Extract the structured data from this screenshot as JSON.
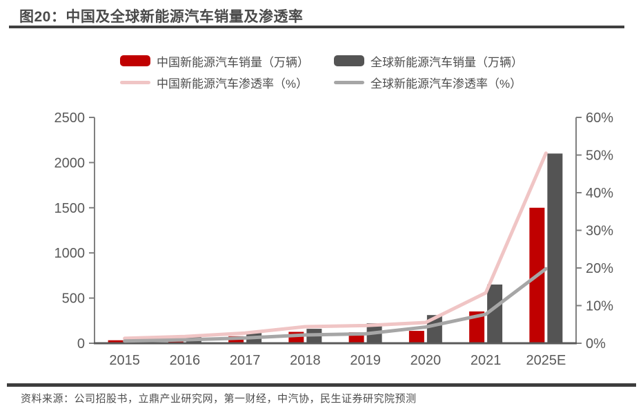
{
  "header": {
    "title": "图20：中国及全球新能源汽车销量及渗透率"
  },
  "footer": {
    "source": "资料来源：公司招股书，立鼎产业研究网，第一财经，中汽协，民生证券研究院预测"
  },
  "colors": {
    "china_bar": "#c00000",
    "global_bar": "#545454",
    "china_line": "#f0c5c5",
    "global_line": "#a6a6a6",
    "axis_line": "#7f7f7f",
    "baseline": "#595959",
    "tick_text": "#595959"
  },
  "chart_data": {
    "type": "bar",
    "subtype": "bar-line combo, dual axis",
    "categories": [
      "2015",
      "2016",
      "2017",
      "2018",
      "2019",
      "2020",
      "2021",
      "2025E"
    ],
    "series": [
      {
        "name": "中国新能源汽车销量（万辆）",
        "kind": "bar",
        "axis": "left",
        "color_key": "china_bar",
        "values": [
          33,
          51,
          78,
          126,
          121,
          137,
          352,
          1500
        ]
      },
      {
        "name": "全球新能源汽车销量（万辆）",
        "kind": "bar",
        "axis": "left",
        "color_key": "global_bar",
        "values": [
          55,
          75,
          122,
          160,
          221,
          312,
          650,
          2100
        ]
      },
      {
        "name": "中国新能源汽车渗透率（%）",
        "kind": "line",
        "axis": "right",
        "color_key": "china_line",
        "values": [
          1.3,
          1.8,
          2.7,
          4.4,
          4.7,
          5.5,
          13.4,
          50.5
        ]
      },
      {
        "name": "全球新能源汽车渗透率（%）",
        "kind": "line",
        "axis": "right",
        "color_key": "global_line",
        "values": [
          0.6,
          0.9,
          1.4,
          2.2,
          2.5,
          4.3,
          7.7,
          19.8
        ]
      }
    ],
    "left_axis": {
      "min": 0,
      "max": 2500,
      "tick_labels": [
        "0",
        "500",
        "1000",
        "1500",
        "2000",
        "2500"
      ]
    },
    "right_axis": {
      "min": 0,
      "max": 60,
      "tick_labels": [
        "0%",
        "10%",
        "20%",
        "30%",
        "40%",
        "50%",
        "60%"
      ]
    },
    "legend_position": "top",
    "grid": "off"
  }
}
